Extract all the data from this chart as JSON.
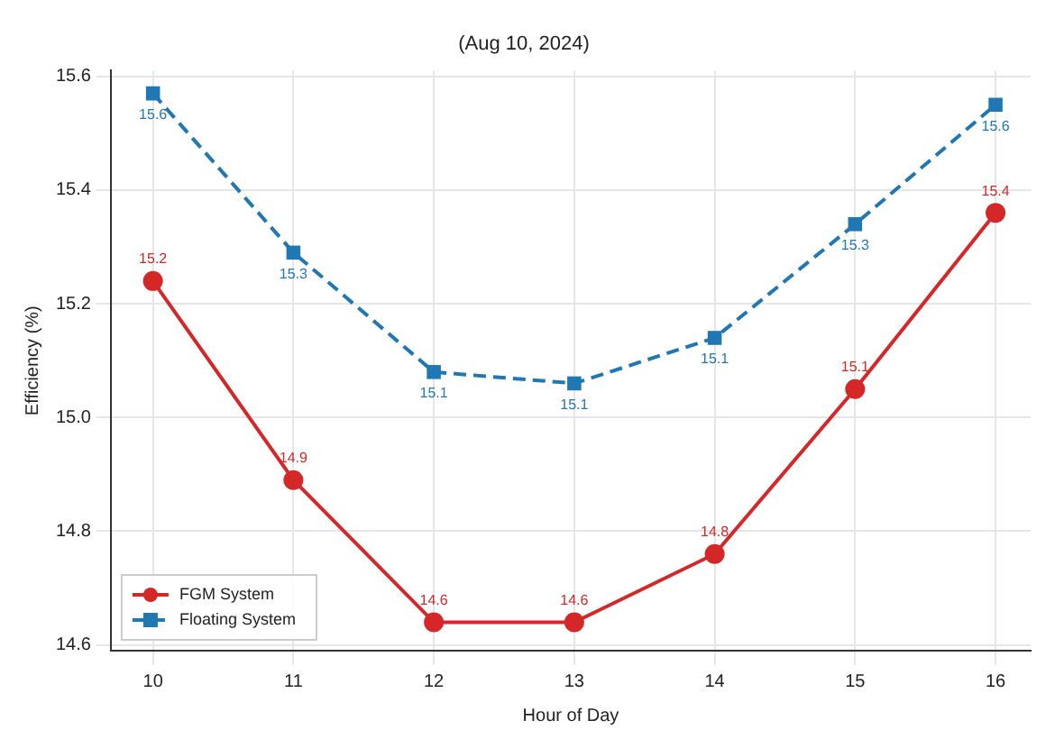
{
  "chart_data": {
    "type": "line",
    "title": "(Aug 10, 2024)",
    "xlabel": "Hour of Day",
    "ylabel": "Efficiency (%)",
    "x": [
      10,
      11,
      12,
      13,
      14,
      15,
      16
    ],
    "series": [
      {
        "name": "FGM System",
        "color": "#d62728",
        "marker": "circle",
        "line_style": "solid",
        "values": [
          15.24,
          14.89,
          14.64,
          14.64,
          14.76,
          15.05,
          15.36
        ],
        "value_labels": [
          "15.2",
          "14.9",
          "14.6",
          "14.6",
          "14.8",
          "15.1",
          "15.4"
        ]
      },
      {
        "name": "Floating System",
        "color": "#1f77b4",
        "marker": "square",
        "line_style": "dashed",
        "values": [
          15.57,
          15.29,
          15.08,
          15.06,
          15.14,
          15.34,
          15.55
        ],
        "value_labels": [
          "15.6",
          "15.3",
          "15.1",
          "15.1",
          "15.1",
          "15.3",
          "15.6"
        ]
      }
    ],
    "xlim": [
      9.7,
      16.25
    ],
    "xticks": [
      10,
      11,
      12,
      13,
      14,
      15,
      16
    ],
    "ylim": [
      14.59,
      15.61
    ],
    "yticks": [
      14.6,
      14.8,
      {
        "value": 15.0,
        "label": "15.0"
      },
      15.2,
      15.4,
      15.6
    ],
    "grid": true,
    "legend": "bottom left"
  }
}
